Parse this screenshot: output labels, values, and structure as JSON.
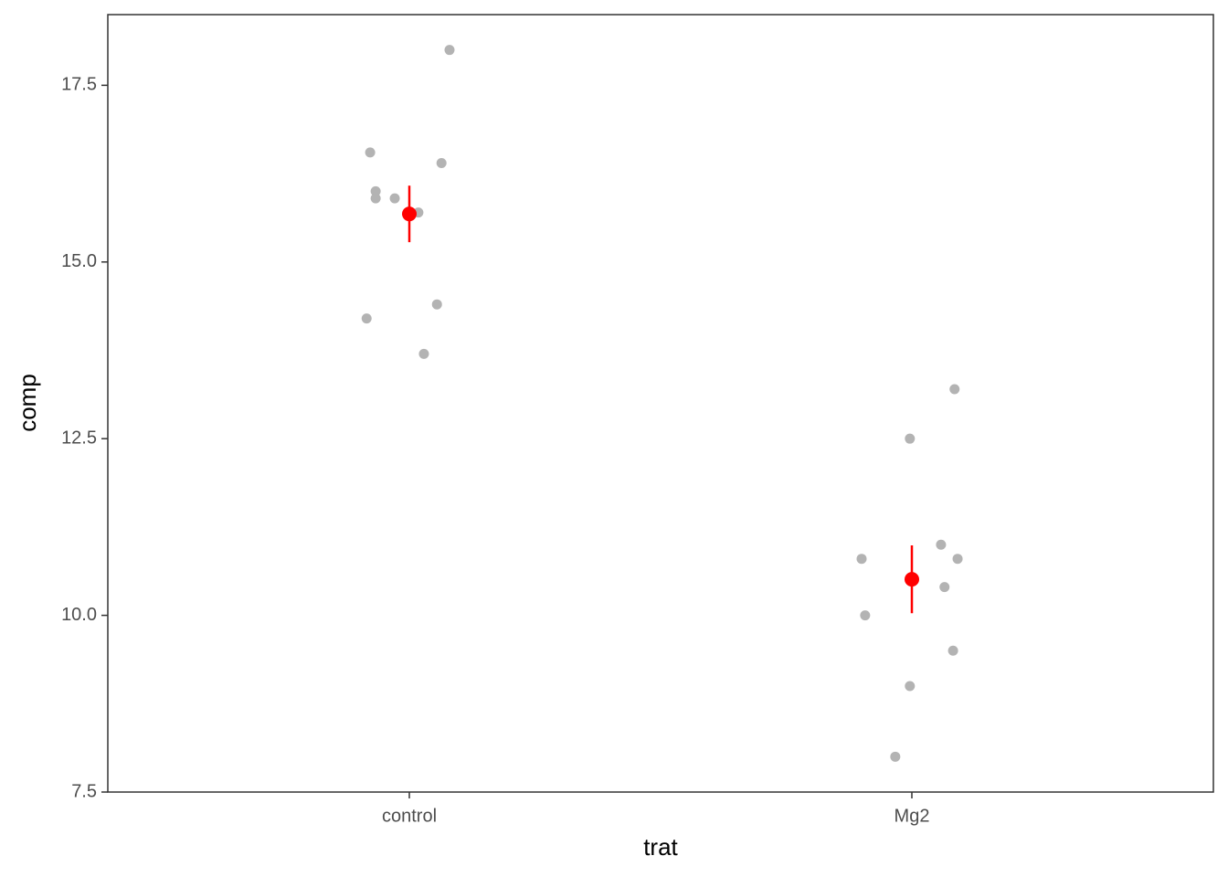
{
  "chart_data": {
    "type": "scatter",
    "x_label": "trat",
    "y_label": "comp",
    "xlim": [
      0.4,
      2.6
    ],
    "xticks": [
      {
        "value": 1,
        "label": "control"
      },
      {
        "value": 2,
        "label": "Mg2"
      }
    ],
    "ylim": [
      7.5,
      18.5
    ],
    "yticks": [
      7.5,
      {
        "value": 10,
        "label": "10.0"
      },
      12.5,
      {
        "value": 15,
        "label": "15.0"
      },
      17.5
    ],
    "grid": false,
    "series": [
      {
        "color": "#b3b3b3",
        "x": [
          0.922,
          0.933,
          0.933,
          0.971,
          1.018,
          1.064,
          1.08,
          0.915,
          1.055,
          1.029,
          2.085,
          1.996,
          1.9,
          2.058,
          2.091,
          2.065,
          1.907,
          2.082,
          1.996,
          1.967
        ],
        "values": [
          16.55,
          16.0,
          15.9,
          15.9,
          15.7,
          16.4,
          18.0,
          14.2,
          14.4,
          13.7,
          13.2,
          12.5,
          10.8,
          11.0,
          10.8,
          10.4,
          10.0,
          9.5,
          9.0,
          8.0
        ]
      },
      {
        "color": "#ff0000",
        "x": [
          1,
          2
        ],
        "values": [
          15.68,
          10.51
        ],
        "errors": [
          0.4,
          0.48
        ]
      }
    ]
  }
}
